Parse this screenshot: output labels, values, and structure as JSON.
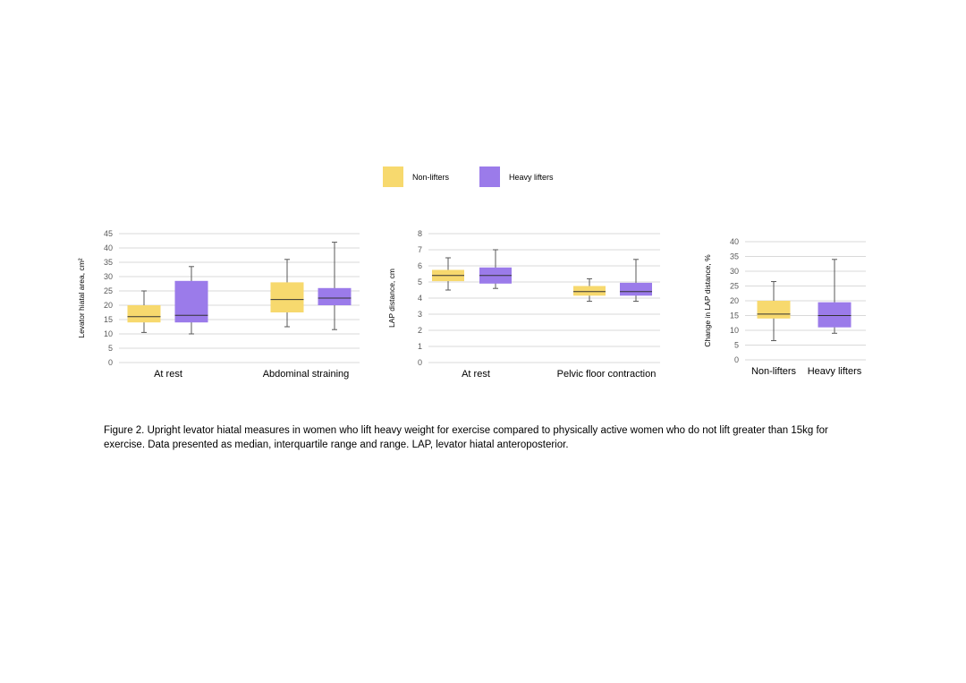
{
  "legend": [
    {
      "name": "Non-lifters",
      "color": "#F7D96E"
    },
    {
      "name": "Heavy lifters",
      "color": "#9B7BEA"
    }
  ],
  "chart_data": [
    {
      "type": "boxplot",
      "ylabel": "Levator hiatal area, cm²",
      "ylim": [
        0,
        45
      ],
      "yticks": [
        0,
        5,
        10,
        15,
        20,
        25,
        30,
        35,
        40,
        45
      ],
      "categories": [
        "At rest",
        "Abdominal straining"
      ],
      "series": [
        {
          "name": "Non-lifters",
          "boxes": [
            {
              "min": 10.5,
              "q1": 14,
              "median": 16,
              "q3": 20,
              "max": 25
            },
            {
              "min": 12.5,
              "q1": 17.5,
              "median": 22,
              "q3": 28,
              "max": 36
            }
          ]
        },
        {
          "name": "Heavy lifters",
          "boxes": [
            {
              "min": 10,
              "q1": 14,
              "median": 16.5,
              "q3": 28.5,
              "max": 33.5
            },
            {
              "min": 11.5,
              "q1": 20,
              "median": 22.5,
              "q3": 26,
              "max": 42
            }
          ]
        }
      ],
      "grid": true
    },
    {
      "type": "boxplot",
      "ylabel": "LAP distance, cm",
      "ylim": [
        0,
        8
      ],
      "yticks": [
        0,
        1,
        2,
        3,
        4,
        5,
        6,
        7,
        8
      ],
      "categories": [
        "At rest",
        "Pelvic floor contraction"
      ],
      "series": [
        {
          "name": "Non-lifters",
          "boxes": [
            {
              "min": 4.5,
              "q1": 5.05,
              "median": 5.4,
              "q3": 5.75,
              "max": 6.5
            },
            {
              "min": 3.8,
              "q1": 4.15,
              "median": 4.4,
              "q3": 4.75,
              "max": 5.2
            }
          ]
        },
        {
          "name": "Heavy lifters",
          "boxes": [
            {
              "min": 4.6,
              "q1": 4.9,
              "median": 5.4,
              "q3": 5.9,
              "max": 7.0
            },
            {
              "min": 3.8,
              "q1": 4.15,
              "median": 4.4,
              "q3": 4.95,
              "max": 6.4
            }
          ]
        }
      ],
      "grid": true
    },
    {
      "type": "boxplot",
      "ylabel": "Change in LAP distance, %",
      "ylim": [
        0,
        40
      ],
      "yticks": [
        0,
        5,
        10,
        15,
        20,
        25,
        30,
        35,
        40
      ],
      "categories": [
        "Non-lifters",
        "Heavy lifters"
      ],
      "series": [
        {
          "name": "Non-lifters",
          "boxes": [
            {
              "min": 6.5,
              "q1": 14,
              "median": 15.5,
              "q3": 20,
              "max": 26.5
            }
          ]
        },
        {
          "name": "Heavy lifters",
          "boxes": [
            {
              "min": 9,
              "q1": 11,
              "median": 15,
              "q3": 19.5,
              "max": 34
            }
          ]
        }
      ],
      "grid": true
    }
  ],
  "caption": "Figure 2. Upright levator hiatal measures in women who lift heavy weight for exercise compared to physically active women who do not lift greater than 15kg for exercise. Data presented as median, interquartile range and range. LAP, levator hiatal anteroposterior."
}
